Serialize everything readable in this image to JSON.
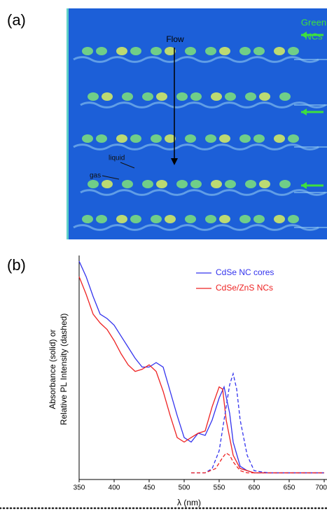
{
  "figure_a": {
    "label": "(a)",
    "flow": "Flow",
    "liquid": "liquid",
    "gas": "gas",
    "inlet": [
      "Green",
      "NCs"
    ]
  },
  "figure_b": {
    "label": "(b)"
  },
  "chart_data": {
    "type": "line",
    "xlabel": "λ (nm)",
    "ylabel": [
      "Absorbance (solid) or",
      "Relative PL Intensity (dashed)"
    ],
    "xlim": [
      350,
      700
    ],
    "xticks": [
      350,
      400,
      450,
      500,
      550,
      600,
      650,
      700
    ],
    "ylim": [
      0,
      100
    ],
    "legend": "top-right",
    "series": [
      {
        "name": "CdSe NC cores",
        "color": "#3333ee",
        "dashed": false,
        "x": [
          350,
          360,
          370,
          380,
          390,
          400,
          410,
          420,
          430,
          440,
          450,
          460,
          470,
          480,
          490,
          500,
          510,
          520,
          530,
          540,
          550,
          557,
          565,
          570,
          580,
          590,
          600,
          650,
          700
        ],
        "values": [
          99,
          92,
          83,
          75,
          73,
          70,
          65,
          60,
          55,
          51,
          51,
          53,
          51,
          40,
          29,
          19,
          17,
          21,
          20,
          27,
          37,
          42,
          30,
          17,
          6,
          4,
          3,
          3,
          3
        ]
      },
      {
        "name": "CdSe/ZnS NCs",
        "color": "#ee2222",
        "dashed": false,
        "x": [
          350,
          360,
          370,
          380,
          390,
          400,
          410,
          420,
          430,
          440,
          450,
          460,
          470,
          480,
          490,
          500,
          510,
          520,
          530,
          540,
          550,
          555,
          560,
          570,
          580,
          590,
          600,
          700
        ],
        "values": [
          92,
          84,
          75,
          71,
          68,
          63,
          57,
          52,
          49,
          50,
          52,
          49,
          40,
          29,
          19,
          17,
          19,
          21,
          22,
          33,
          42,
          41,
          27,
          11,
          5,
          4,
          3,
          3
        ]
      },
      {
        "color": "#3333ee",
        "dashed": true,
        "x": [
          510,
          530,
          540,
          550,
          560,
          565,
          570,
          575,
          580,
          590,
          600,
          620,
          700
        ],
        "values": [
          3,
          3,
          5,
          13,
          33,
          43,
          48,
          41,
          27,
          11,
          4,
          3,
          3
        ]
      },
      {
        "color": "#ee2222",
        "dashed": true,
        "x": [
          510,
          530,
          545,
          555,
          560,
          565,
          570,
          580,
          590,
          700
        ],
        "values": [
          3,
          3,
          5,
          10,
          12,
          11,
          8,
          4,
          3,
          3
        ]
      }
    ]
  }
}
